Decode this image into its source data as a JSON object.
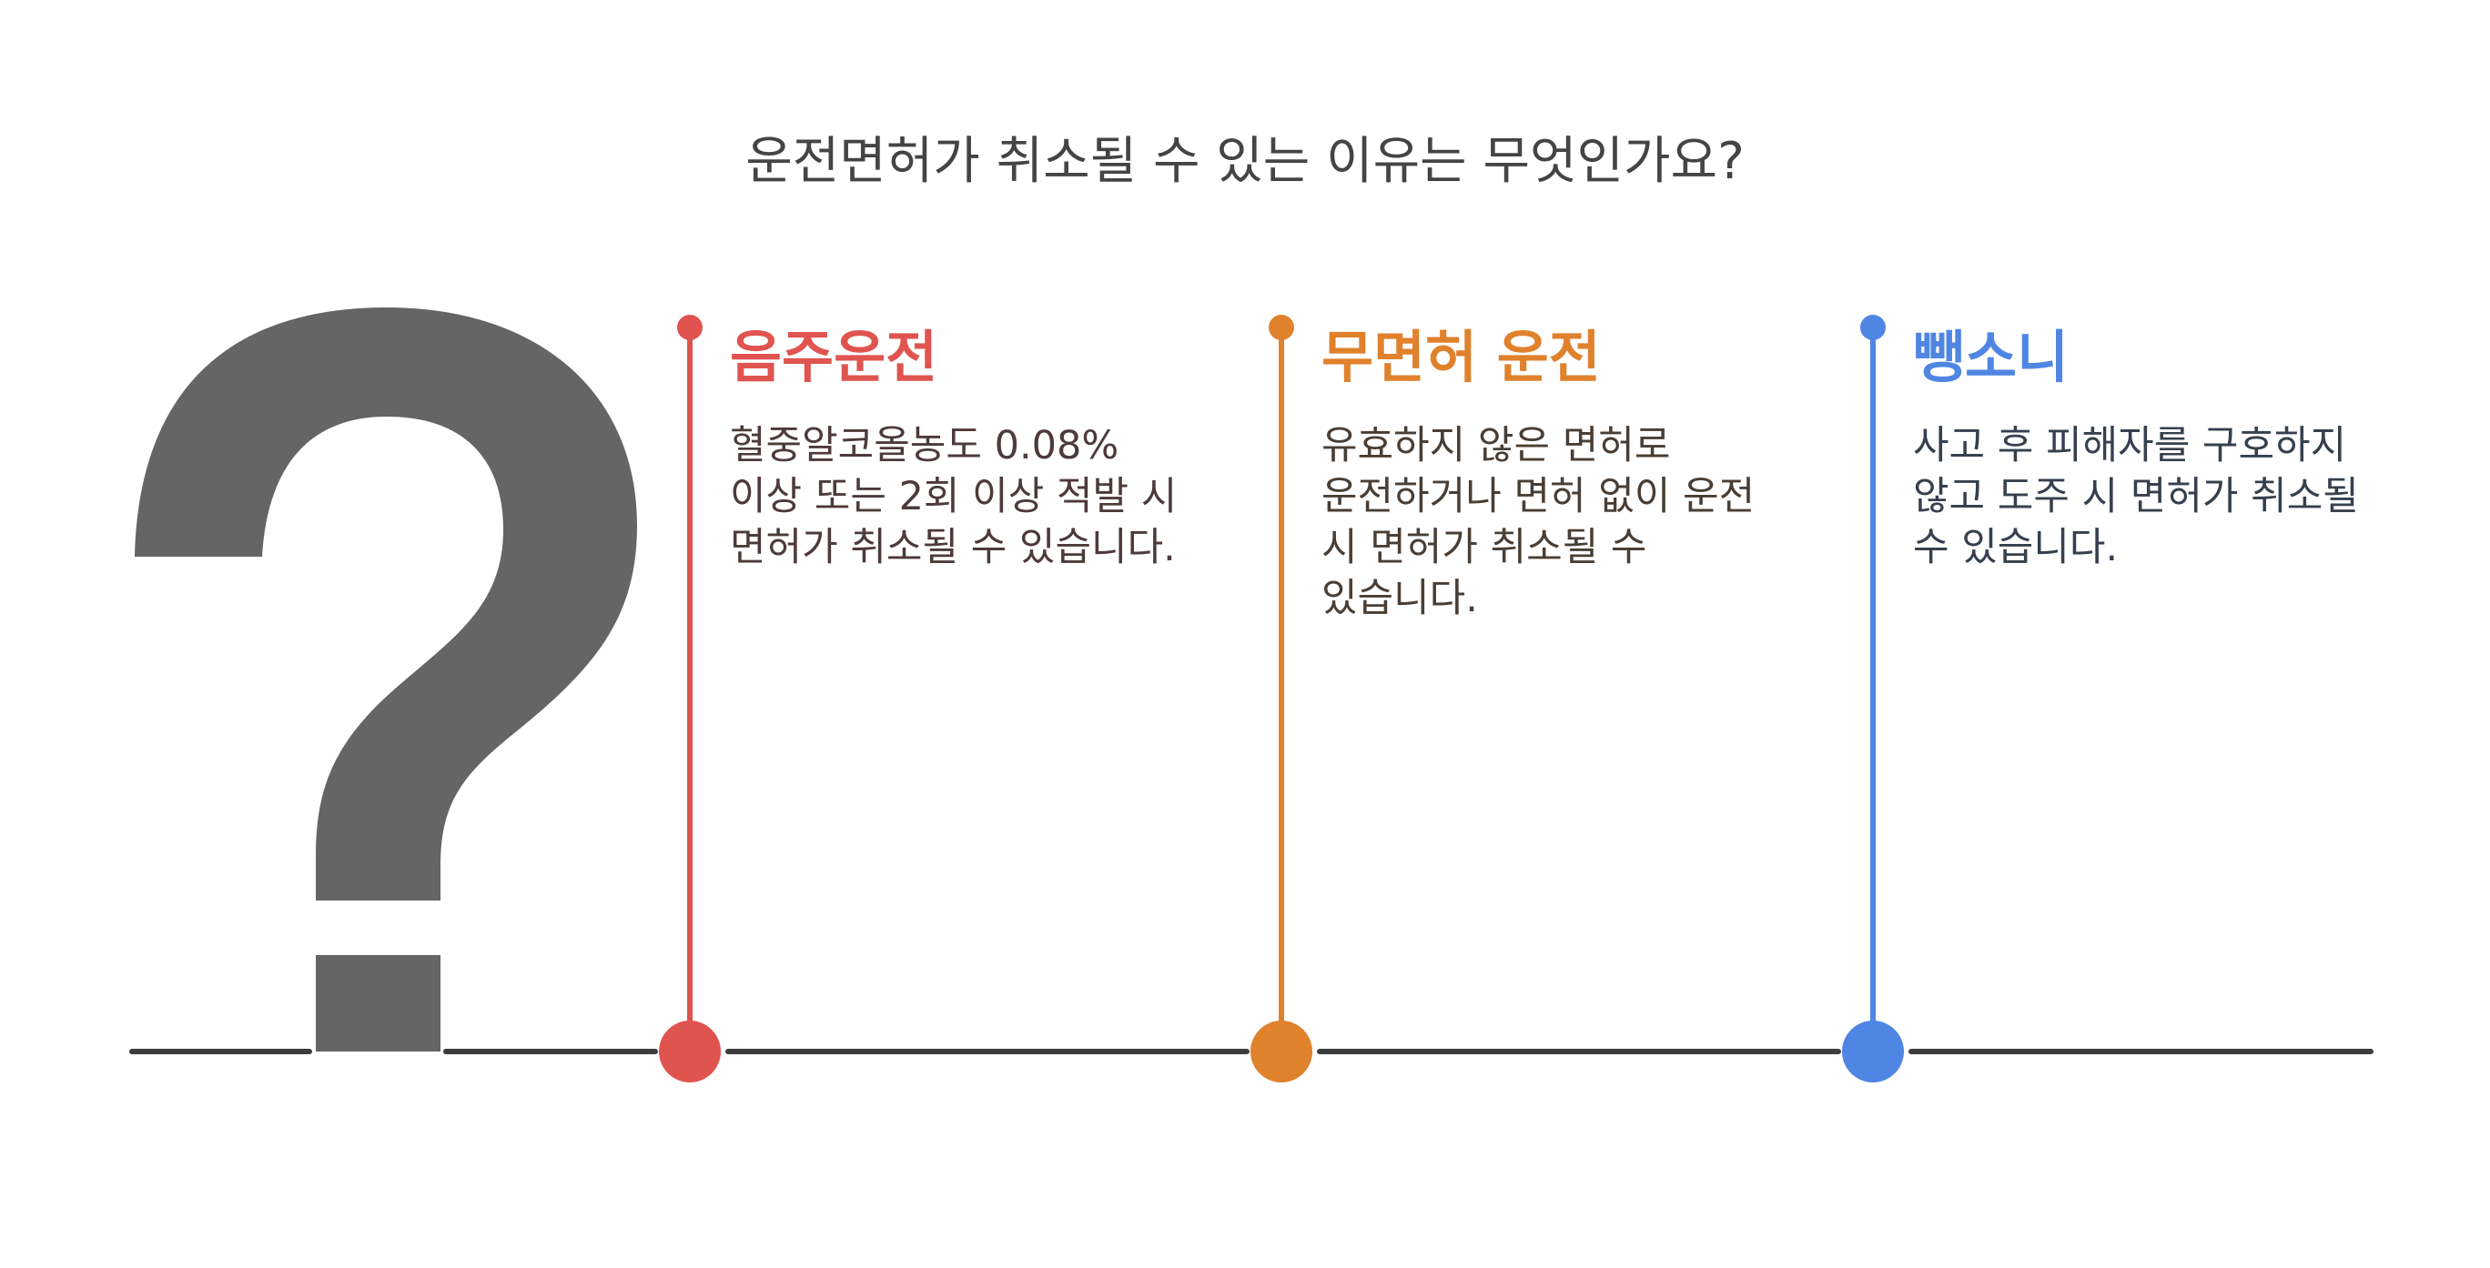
{
  "title": "운전면허가 취소될 수 있는 이유는 무엇인가요?",
  "items": [
    {
      "title": "음주운전",
      "description": "혈중알코올농도 0.08% 이상 또는 2회 이상 적발 시 면허가 취소될 수 있습니다.",
      "color": "#e05450"
    },
    {
      "title": "무면허 운전",
      "description": "유효하지 않은 면허로 운전하거나 면허 없이 운전 시 면허가 취소될 수 있습니다.",
      "color": "#e0812c"
    },
    {
      "title": "뺑소니",
      "description": "사고 후 피해자를 구호하지 않고 도주 시 면허가 취소될 수 있습니다.",
      "color": "#4f86e3"
    }
  ],
  "icons": {
    "main": "question-mark-icon"
  },
  "colors": {
    "timeline": "#3c3c3c",
    "question_mark": "#656565"
  }
}
